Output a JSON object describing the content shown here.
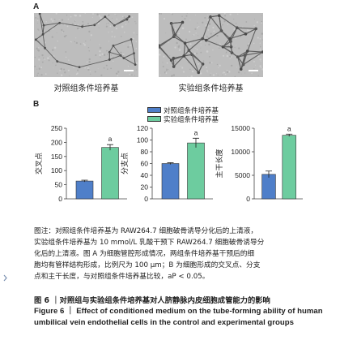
{
  "panel_a_letter": "A",
  "panel_b_letter": "B",
  "images": [
    {
      "label": "对照组条件培养基"
    },
    {
      "label": "实验组条件培养基"
    }
  ],
  "legend": [
    {
      "label": "对照组条件培养基",
      "color": "#4f7fc9"
    },
    {
      "label": "实验组条件培养基",
      "color": "#6dcc9f"
    }
  ],
  "chart_data": [
    {
      "type": "bar",
      "ylabel": "交叉点",
      "yticks": [
        0,
        50,
        100,
        150,
        200,
        250
      ],
      "ylim": [
        0,
        250
      ],
      "series": [
        {
          "name": "对照组条件培养基",
          "value": 63,
          "error": 3,
          "color": "#4f7fc9"
        },
        {
          "name": "实验组条件培养基",
          "value": 182,
          "error": 10,
          "color": "#6dcc9f",
          "label": "a"
        }
      ]
    },
    {
      "type": "bar",
      "ylabel": "分支点",
      "yticks": [
        0,
        20,
        40,
        60,
        80,
        100,
        120
      ],
      "ylim": [
        0,
        120
      ],
      "series": [
        {
          "name": "对照组条件培养基",
          "value": 60,
          "error": 1.5,
          "color": "#4f7fc9"
        },
        {
          "name": "实验组条件培养基",
          "value": 95,
          "error": 8,
          "color": "#6dcc9f",
          "label": "a"
        }
      ]
    },
    {
      "type": "bar",
      "ylabel": "主干长度",
      "yticks": [
        0,
        5000,
        10000,
        15000
      ],
      "ylim": [
        0,
        15000
      ],
      "series": [
        {
          "name": "对照组条件培养基",
          "value": 5200,
          "error": 700,
          "color": "#4f7fc9"
        },
        {
          "name": "实验组条件培养基",
          "value": 13500,
          "error": 250,
          "color": "#6dcc9f",
          "label": "a"
        }
      ]
    }
  ],
  "note_lines": [
    "图注：对照组条件培养基为 RAW264.7 细胞破骨诱导分化后的上清液，",
    "实验组条件培养基为 10 mmol/L 乳酸干预下 RAW264.7 细胞破骨诱导分",
    "化后的上清液。图 A 为细胞管腔形成情况，两组条件培养基干预后的细",
    "胞均有管样结构形成，比例尺为 100 μm；B 为细胞形成的交叉点、分支",
    "点和主干长度，与对照组条件培养基比较，aP < 0.05。"
  ],
  "caption_cn": "图 6 ｜对照组与实验组条件培养基对人脐静脉内皮细胞成管能力的影响",
  "caption_en": "Figure 6 ｜ Effect of conditioned medium on the tube-forming ability of human umbilical vein endothelial cells in the control and experimental groups"
}
